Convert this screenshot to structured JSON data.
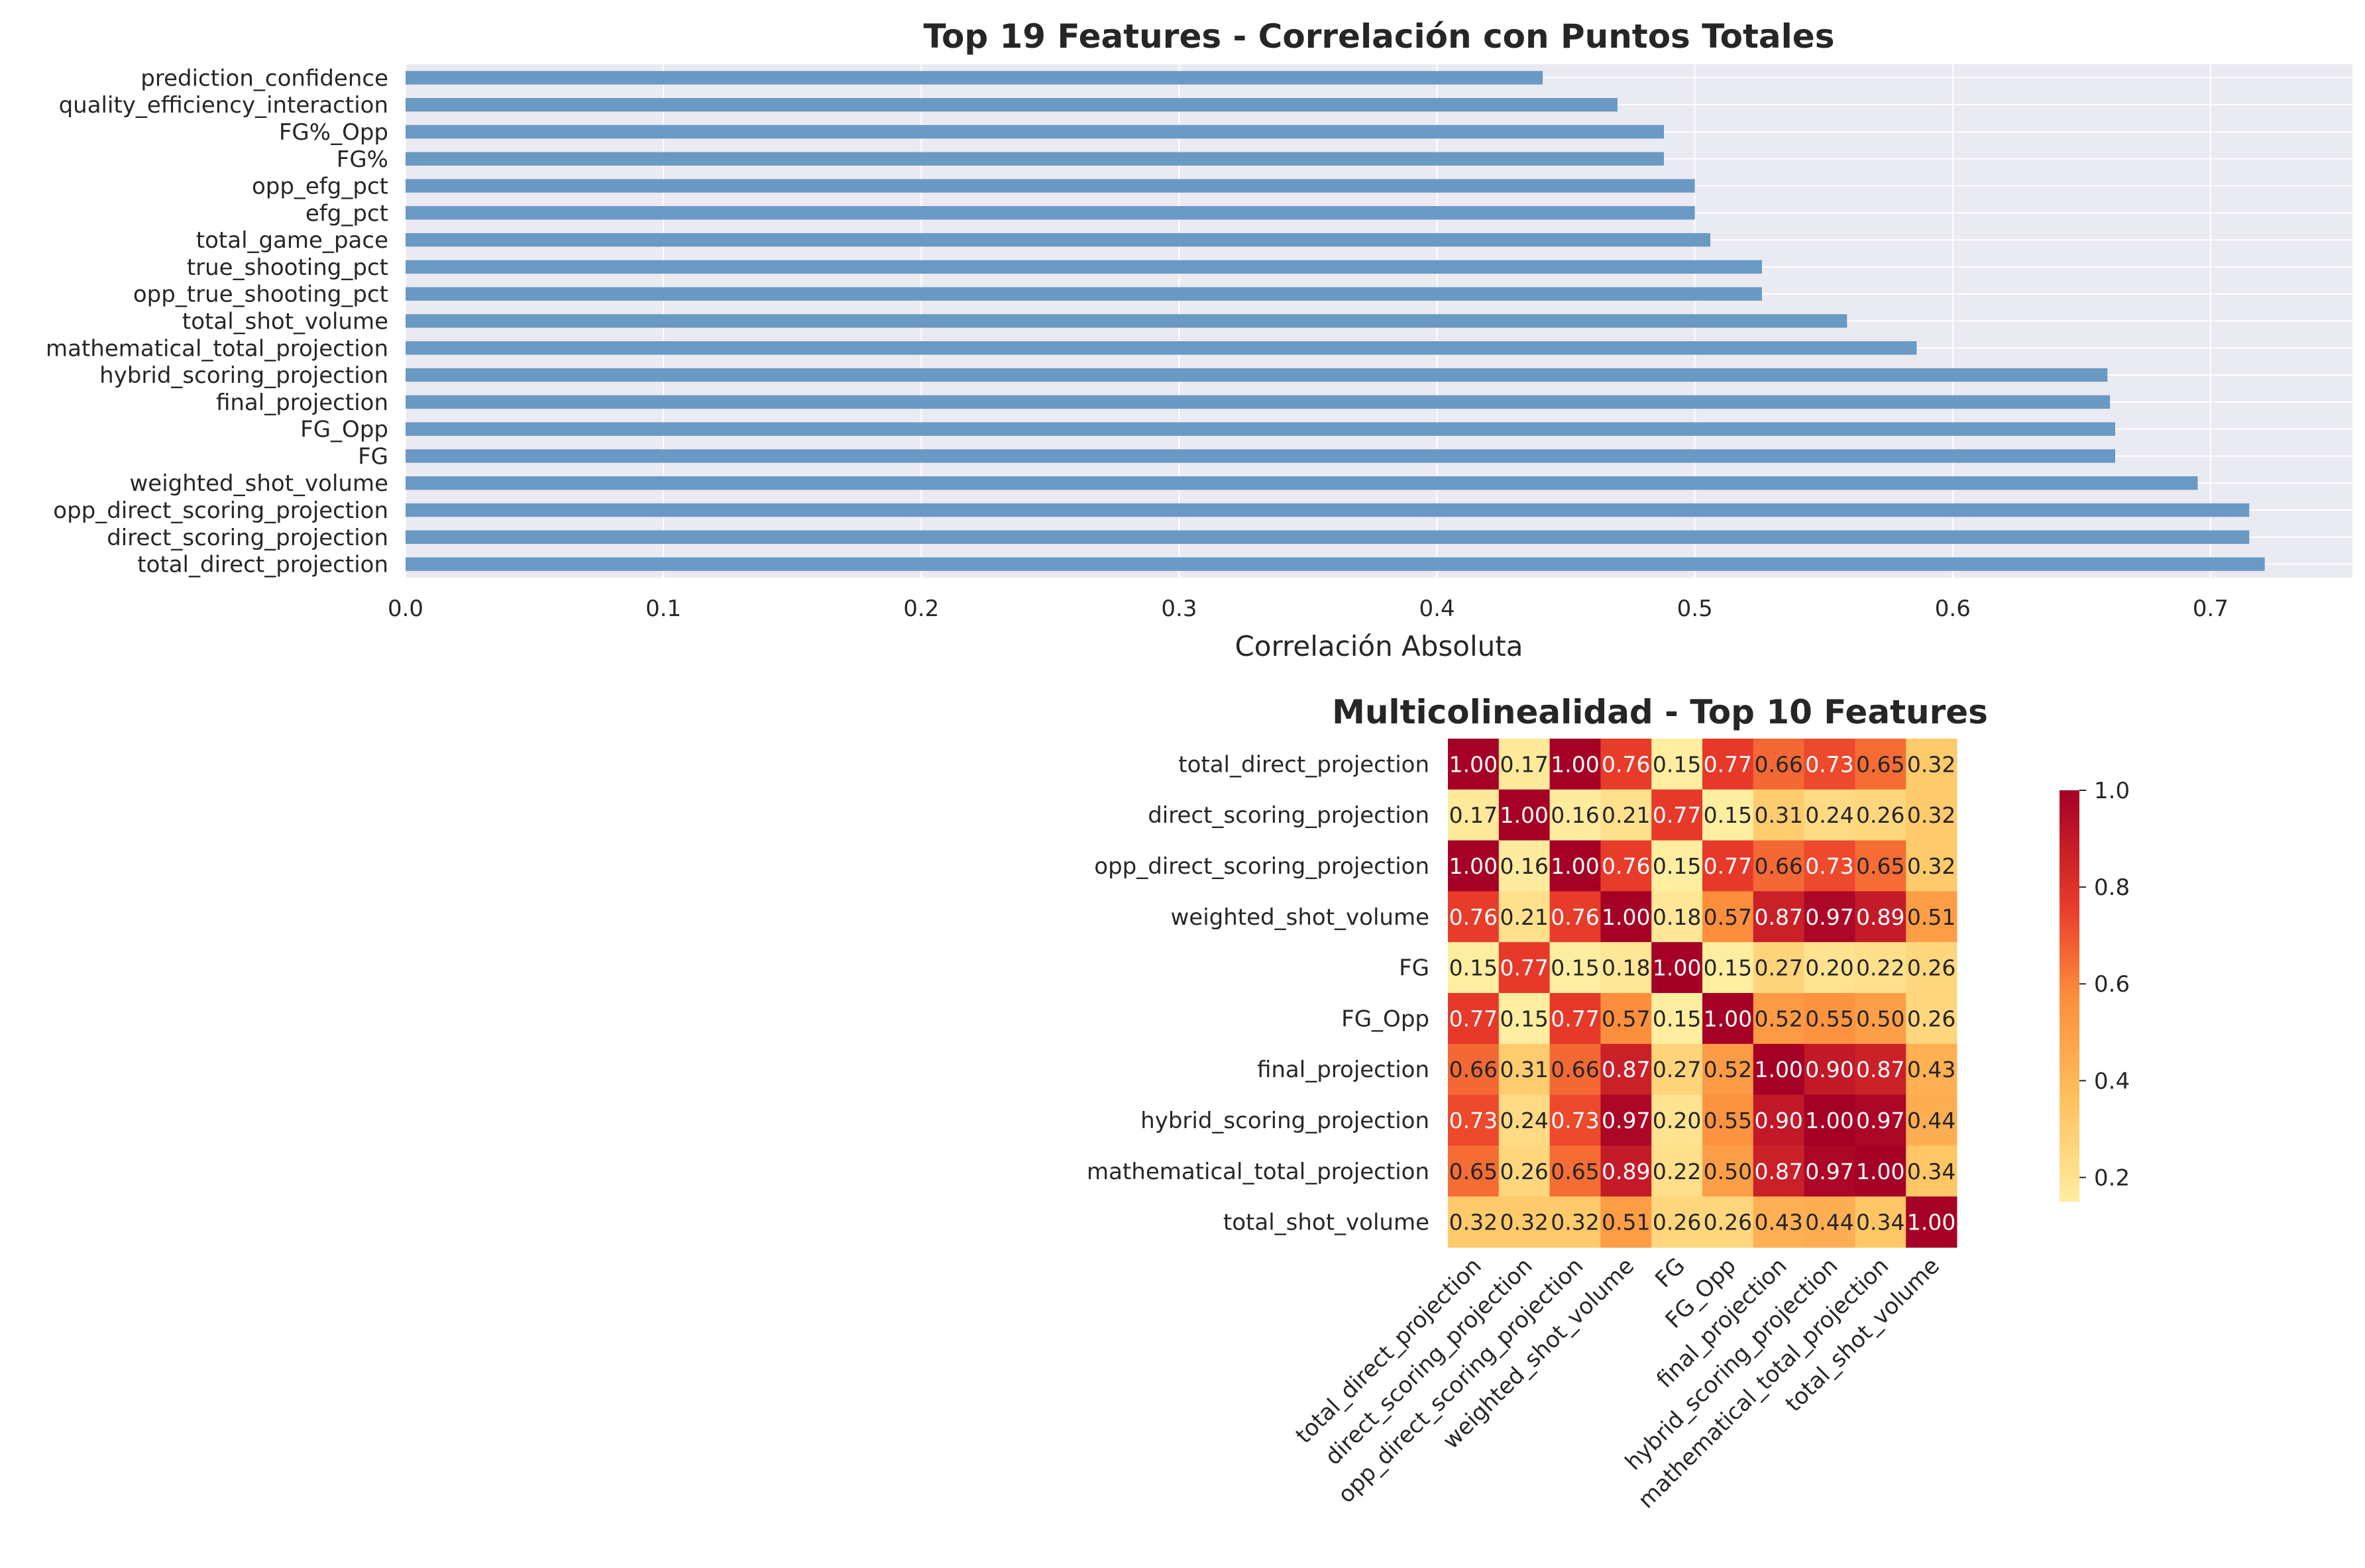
{
  "chart_data": [
    {
      "type": "bar",
      "orientation": "horizontal",
      "title": "Top 19 Features - Correlación con Puntos Totales",
      "xlabel": "Correlación Absoluta",
      "ylabel": "",
      "xlim": [
        0,
        0.755
      ],
      "xticks": [
        0.0,
        0.1,
        0.2,
        0.3,
        0.4,
        0.5,
        0.6,
        0.7
      ],
      "grid": true,
      "bar_color": "#6a99c4",
      "background": "#eaeaf2",
      "categories": [
        "total_direct_projection",
        "direct_scoring_projection",
        "opp_direct_scoring_projection",
        "weighted_shot_volume",
        "FG",
        "FG_Opp",
        "final_projection",
        "hybrid_scoring_projection",
        "mathematical_total_projection",
        "total_shot_volume",
        "opp_true_shooting_pct",
        "true_shooting_pct",
        "total_game_pace",
        "efg_pct",
        "opp_efg_pct",
        "FG%",
        "FG%_Opp",
        "quality_efficiency_interaction",
        "prediction_confidence"
      ],
      "values": [
        0.721,
        0.715,
        0.715,
        0.695,
        0.663,
        0.663,
        0.661,
        0.66,
        0.586,
        0.559,
        0.526,
        0.526,
        0.506,
        0.5,
        0.5,
        0.488,
        0.488,
        0.47,
        0.441
      ]
    },
    {
      "type": "heatmap",
      "title": "Multicolinealidad - Top 10 Features",
      "colormap": "RdYlBu_r-like (yellow to dark red)",
      "colorbar_ticks": [
        1.0,
        0.8,
        0.6,
        0.4,
        0.2
      ],
      "value_range": [
        0.15,
        1.0
      ],
      "labels": [
        "total_direct_projection",
        "direct_scoring_projection",
        "opp_direct_scoring_projection",
        "weighted_shot_volume",
        "FG",
        "FG_Opp",
        "final_projection",
        "hybrid_scoring_projection",
        "mathematical_total_projection",
        "total_shot_volume"
      ],
      "matrix": [
        [
          1.0,
          0.17,
          1.0,
          0.76,
          0.15,
          0.77,
          0.66,
          0.73,
          0.65,
          0.32
        ],
        [
          0.17,
          1.0,
          0.16,
          0.21,
          0.77,
          0.15,
          0.31,
          0.24,
          0.26,
          0.32
        ],
        [
          1.0,
          0.16,
          1.0,
          0.76,
          0.15,
          0.77,
          0.66,
          0.73,
          0.65,
          0.32
        ],
        [
          0.76,
          0.21,
          0.76,
          1.0,
          0.18,
          0.57,
          0.87,
          0.97,
          0.89,
          0.51
        ],
        [
          0.15,
          0.77,
          0.15,
          0.18,
          1.0,
          0.15,
          0.27,
          0.2,
          0.22,
          0.26
        ],
        [
          0.77,
          0.15,
          0.77,
          0.57,
          0.15,
          1.0,
          0.52,
          0.55,
          0.5,
          0.26
        ],
        [
          0.66,
          0.31,
          0.66,
          0.87,
          0.27,
          0.52,
          1.0,
          0.9,
          0.87,
          0.43
        ],
        [
          0.73,
          0.24,
          0.73,
          0.97,
          0.2,
          0.55,
          0.9,
          1.0,
          0.97,
          0.44
        ],
        [
          0.65,
          0.26,
          0.65,
          0.89,
          0.22,
          0.5,
          0.87,
          0.97,
          1.0,
          0.34
        ],
        [
          0.32,
          0.32,
          0.32,
          0.51,
          0.26,
          0.26,
          0.43,
          0.44,
          0.34,
          1.0
        ]
      ]
    }
  ]
}
